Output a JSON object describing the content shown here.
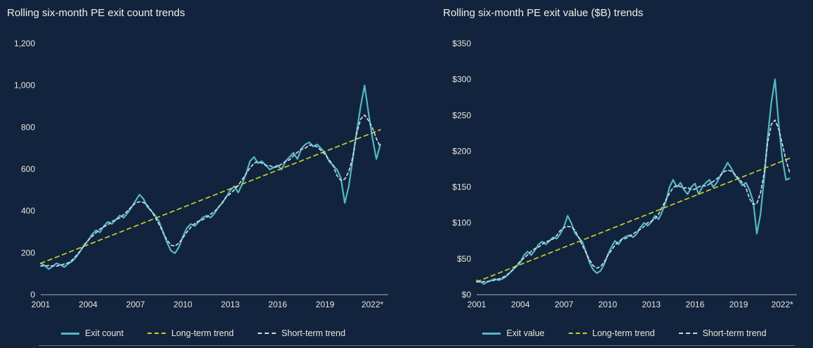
{
  "theme": {
    "background": "#12233e",
    "title_color": "#f2efe6",
    "tick_color": "#e9e6da",
    "axis_color": "#a7afbc",
    "exit_line_color": "#52b9c5",
    "long_term_color": "#c6cf2d",
    "short_term_color": "#cdd7e6"
  },
  "chart_data": [
    {
      "type": "line",
      "title": "Rolling six-month PE exit count trends",
      "grid": false,
      "legend_position": "bottom",
      "xlim": [
        2001,
        2023
      ],
      "ylim": [
        0,
        1200
      ],
      "x_start": 2001,
      "x_step": 0.25,
      "x_ticks": [
        {
          "v": 2001,
          "label": "2001"
        },
        {
          "v": 2004,
          "label": "2004"
        },
        {
          "v": 2007,
          "label": "2007"
        },
        {
          "v": 2010,
          "label": "2010"
        },
        {
          "v": 2013,
          "label": "2013"
        },
        {
          "v": 2016,
          "label": "2016"
        },
        {
          "v": 2019,
          "label": "2019"
        },
        {
          "v": 2022,
          "label": "2022*"
        }
      ],
      "y_ticks": [
        {
          "v": 0,
          "label": "0"
        },
        {
          "v": 200,
          "label": "200"
        },
        {
          "v": 400,
          "label": "400"
        },
        {
          "v": 600,
          "label": "600"
        },
        {
          "v": 800,
          "label": "800"
        },
        {
          "v": 1000,
          "label": "1,000"
        },
        {
          "v": 1200,
          "label": "1,200"
        }
      ],
      "series": [
        {
          "name": "Exit count",
          "color": "#52b9c5",
          "dash": false,
          "values": [
            150,
            140,
            122,
            135,
            150,
            142,
            132,
            148,
            160,
            180,
            208,
            238,
            258,
            288,
            308,
            298,
            328,
            348,
            338,
            358,
            378,
            368,
            390,
            418,
            448,
            478,
            458,
            420,
            400,
            378,
            348,
            298,
            248,
            210,
            198,
            228,
            278,
            318,
            338,
            328,
            348,
            368,
            378,
            368,
            388,
            418,
            438,
            468,
            498,
            518,
            488,
            528,
            578,
            638,
            658,
            628,
            638,
            618,
            598,
            608,
            618,
            598,
            638,
            658,
            678,
            648,
            698,
            718,
            728,
            708,
            718,
            698,
            678,
            638,
            618,
            598,
            558,
            438,
            518,
            648,
            778,
            898,
            1000,
            868,
            748,
            648,
            718
          ]
        },
        {
          "name": "Long-term trend",
          "color": "#c6cf2d",
          "dash": true,
          "dash_pattern": "6 5",
          "x": [
            2001,
            2022.5
          ],
          "values": [
            150,
            788
          ]
        },
        {
          "name": "Short-term trend",
          "color": "#cdd7e6",
          "dash": true,
          "dash_pattern": "4 3.5",
          "derived": "moving-average(window=5) of Exit count"
        }
      ]
    },
    {
      "type": "line",
      "title": "Rolling six-month PE exit value ($B) trends",
      "grid": false,
      "legend_position": "bottom",
      "xlim": [
        2001,
        2023
      ],
      "ylim": [
        0,
        350
      ],
      "x_start": 2001,
      "x_step": 0.25,
      "x_ticks": [
        {
          "v": 2001,
          "label": "2001"
        },
        {
          "v": 2004,
          "label": "2004"
        },
        {
          "v": 2007,
          "label": "2007"
        },
        {
          "v": 2010,
          "label": "2010"
        },
        {
          "v": 2013,
          "label": "2013"
        },
        {
          "v": 2016,
          "label": "2016"
        },
        {
          "v": 2019,
          "label": "2019"
        },
        {
          "v": 2022,
          "label": "2022*"
        }
      ],
      "y_ticks": [
        {
          "v": 0,
          "label": "$0"
        },
        {
          "v": 50,
          "label": "$50"
        },
        {
          "v": 100,
          "label": "$100"
        },
        {
          "v": 150,
          "label": "$150"
        },
        {
          "v": 200,
          "label": "$200"
        },
        {
          "v": 250,
          "label": "$250"
        },
        {
          "v": 300,
          "label": "$300"
        },
        {
          "v": 350,
          "label": "$350"
        }
      ],
      "series": [
        {
          "name": "Exit value",
          "color": "#52b9c5",
          "dash": false,
          "values": [
            20,
            18,
            15,
            18,
            20,
            22,
            20,
            22,
            25,
            30,
            35,
            40,
            45,
            55,
            60,
            55,
            62,
            70,
            74,
            70,
            75,
            80,
            78,
            85,
            95,
            110,
            100,
            86,
            80,
            74,
            60,
            45,
            35,
            30,
            33,
            42,
            55,
            66,
            75,
            70,
            78,
            81,
            83,
            80,
            85,
            94,
            100,
            96,
            101,
            110,
            105,
            116,
            130,
            150,
            160,
            150,
            156,
            146,
            140,
            150,
            155,
            140,
            150,
            156,
            160,
            150,
            156,
            166,
            175,
            184,
            176,
            166,
            160,
            152,
            156,
            146,
            130,
            85,
            112,
            162,
            220,
            268,
            300,
            238,
            190,
            160,
            162
          ]
        },
        {
          "name": "Long-term trend",
          "color": "#c6cf2d",
          "dash": true,
          "dash_pattern": "6 5",
          "x": [
            2001,
            2022.5
          ],
          "values": [
            18,
            190
          ]
        },
        {
          "name": "Short-term trend",
          "color": "#cdd7e6",
          "dash": true,
          "dash_pattern": "4 3.5",
          "derived": "moving-average(window=5) of Exit value"
        }
      ]
    }
  ]
}
